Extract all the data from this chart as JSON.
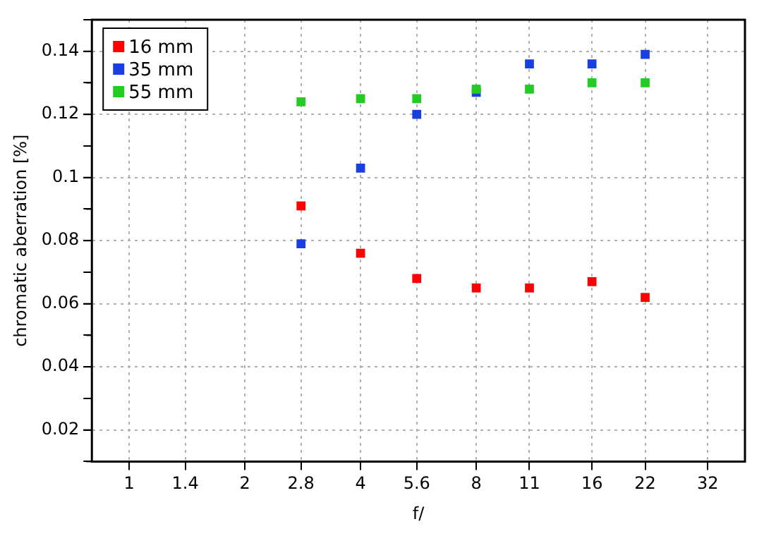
{
  "chart_data": {
    "type": "scatter",
    "xlabel": "f/",
    "ylabel": "chromatic aberration [%]",
    "log": "x",
    "xlim": [
      0.8,
      40
    ],
    "xticks": [
      1,
      1.4,
      2,
      2.8,
      4,
      5.6,
      8,
      11,
      16,
      22,
      32
    ],
    "ylim": [
      0.01,
      0.15
    ],
    "yticks": [
      {
        "value": 0.01,
        "label": null
      },
      0.02,
      {
        "value": 0.03,
        "label": null
      },
      0.04,
      {
        "value": 0.05,
        "label": null
      },
      0.06,
      {
        "value": 0.07,
        "label": null
      },
      0.08,
      {
        "value": 0.09,
        "label": null
      },
      0.1,
      {
        "value": 0.11,
        "label": null
      },
      0.12,
      {
        "value": 0.13,
        "label": null
      },
      0.14,
      {
        "value": 0.15,
        "label": null
      }
    ],
    "grid": true,
    "legend": "top left",
    "marker": "square",
    "x": [
      2.8,
      4,
      5.6,
      8,
      11,
      16,
      22
    ],
    "series": [
      {
        "name": "16 mm",
        "color": "#ff0000",
        "values": [
          0.091,
          0.076,
          0.068,
          0.065,
          0.065,
          0.067,
          0.062
        ]
      },
      {
        "name": "35 mm",
        "color": "#1a3fe0",
        "values": [
          0.079,
          0.103,
          0.12,
          0.127,
          0.136,
          0.136,
          0.139
        ]
      },
      {
        "name": "55 mm",
        "color": "#22cc22",
        "values": [
          0.124,
          0.125,
          0.125,
          0.128,
          0.128,
          0.13,
          0.13
        ]
      }
    ]
  }
}
